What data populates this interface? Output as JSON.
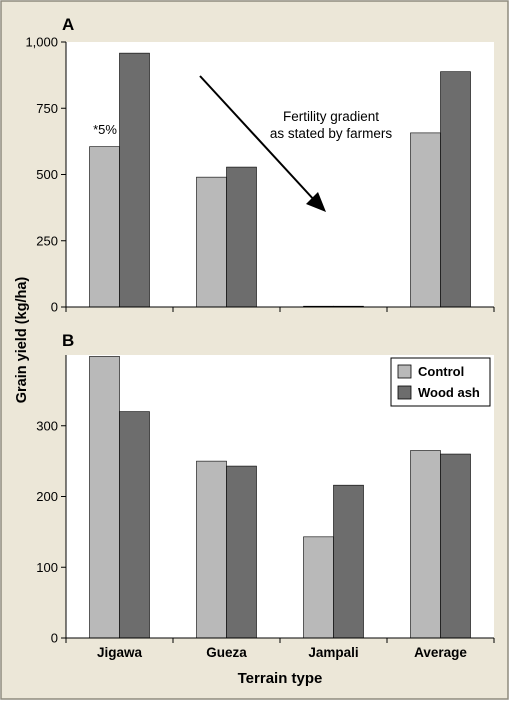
{
  "colors": {
    "frame_bg": "#ece7d8",
    "plot_bg": "#ffffff",
    "control": "#b9b9b9",
    "wood_ash": "#6d6d6d",
    "axis": "#000000"
  },
  "figure": {
    "ylabel": "Grain yield (kg/ha)",
    "xlabel": "Terrain type"
  },
  "chart_data": [
    {
      "type": "bar",
      "panel_label": "A",
      "categories": [
        "Jigawa",
        "Gueza",
        "Jampali",
        "Average"
      ],
      "series": [
        {
          "name": "Control",
          "values": [
            605,
            490,
            3,
            657
          ]
        },
        {
          "name": "Wood ash",
          "values": [
            958,
            528,
            3,
            888
          ]
        }
      ],
      "ylim": [
        0,
        1000
      ],
      "yticks": [
        0,
        250,
        500,
        750,
        1000
      ],
      "ytick_labels": [
        "0",
        "250",
        "500",
        "750",
        "1,000"
      ],
      "annotations": {
        "bar_note": "*5%",
        "gradient_line1": "Fertility gradient",
        "gradient_line2": "as stated by farmers"
      },
      "grid": false
    },
    {
      "type": "bar",
      "panel_label": "B",
      "categories": [
        "Jigawa",
        "Gueza",
        "Jampali",
        "Average"
      ],
      "series": [
        {
          "name": "Control",
          "values": [
            398,
            250,
            143,
            265
          ]
        },
        {
          "name": "Wood ash",
          "values": [
            320,
            243,
            216,
            260
          ]
        }
      ],
      "ylim": [
        0,
        400
      ],
      "yticks": [
        0,
        100,
        200,
        300
      ],
      "ytick_labels": [
        "0",
        "100",
        "200",
        "300"
      ],
      "legend_position": "top-right",
      "grid": false
    }
  ]
}
